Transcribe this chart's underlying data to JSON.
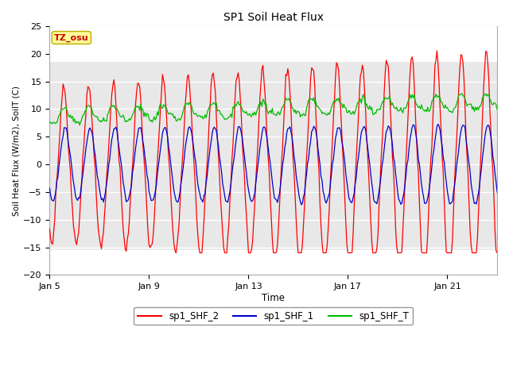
{
  "title": "SP1 Soil Heat Flux",
  "xlabel": "Time",
  "ylabel": "Soil Heat Flux (W/m2), SoilT (C)",
  "ylim": [
    -20,
    25
  ],
  "yticks": [
    -20,
    -15,
    -10,
    -5,
    0,
    5,
    10,
    15,
    20,
    25
  ],
  "xtick_positions": [
    0,
    4,
    8,
    12,
    16
  ],
  "xtick_labels": [
    "Jan 5",
    "Jan 9",
    "Jan 13",
    "Jan 17",
    "Jan 21"
  ],
  "xlim": [
    0,
    18
  ],
  "line_colors": {
    "sp1_SHF_2": "#ff0000",
    "sp1_SHF_1": "#0000cc",
    "sp1_SHF_T": "#00bb00"
  },
  "legend_labels": [
    "sp1_SHF_2",
    "sp1_SHF_1",
    "sp1_SHF_T"
  ],
  "tz_label": "TZ_osu",
  "tz_bg": "#ffff99",
  "tz_border": "#bbaa00",
  "tz_text_color": "#cc0000",
  "background_outer": "#ffffff",
  "shaded_band_y1": -15.5,
  "shaded_band_y2": 18.5,
  "shaded_band_color": "#e8e8e8",
  "grid_color": "#ffffff",
  "num_days": 18
}
